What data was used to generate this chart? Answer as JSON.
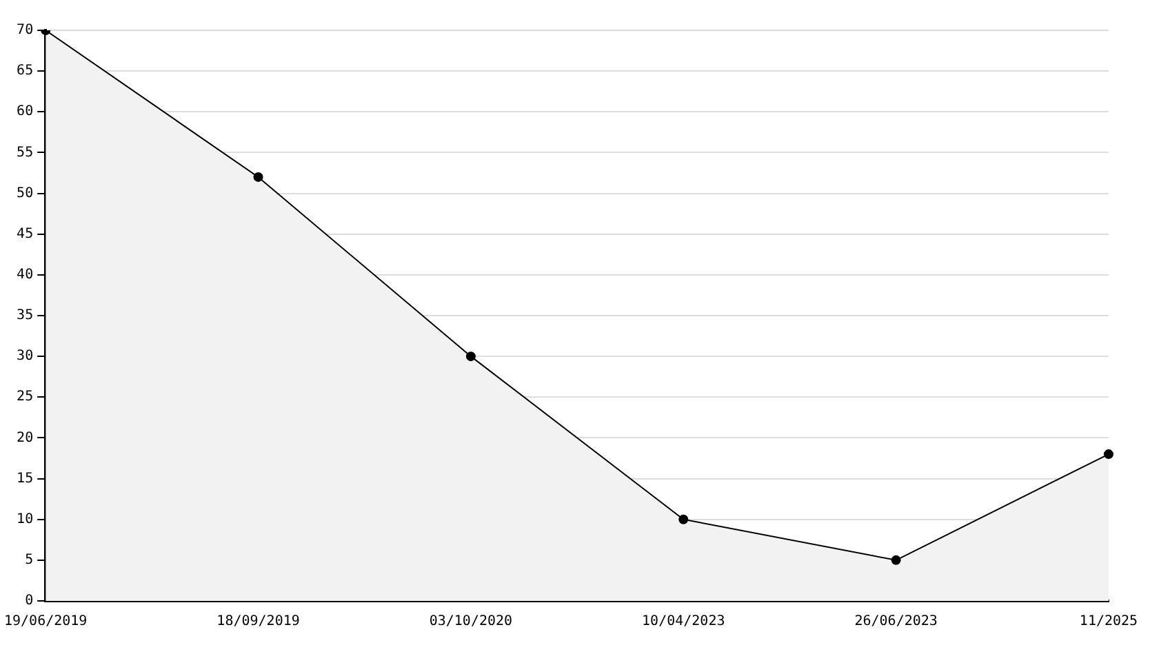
{
  "chart_data": {
    "type": "area",
    "categories": [
      "19/06/2019",
      "18/09/2019",
      "03/10/2020",
      "10/04/2023",
      "26/06/2023",
      "11/2025"
    ],
    "series": [
      {
        "color": "#000000",
        "values": [
          70,
          52,
          30,
          10,
          5,
          18
        ]
      }
    ],
    "ylim": [
      0,
      70
    ],
    "yticks": [
      0,
      5,
      10,
      15,
      20,
      25,
      30,
      35,
      40,
      45,
      50,
      55,
      60,
      65,
      70
    ],
    "grid": "y",
    "legend": false,
    "marker": "circle",
    "line_style": "solid"
  }
}
